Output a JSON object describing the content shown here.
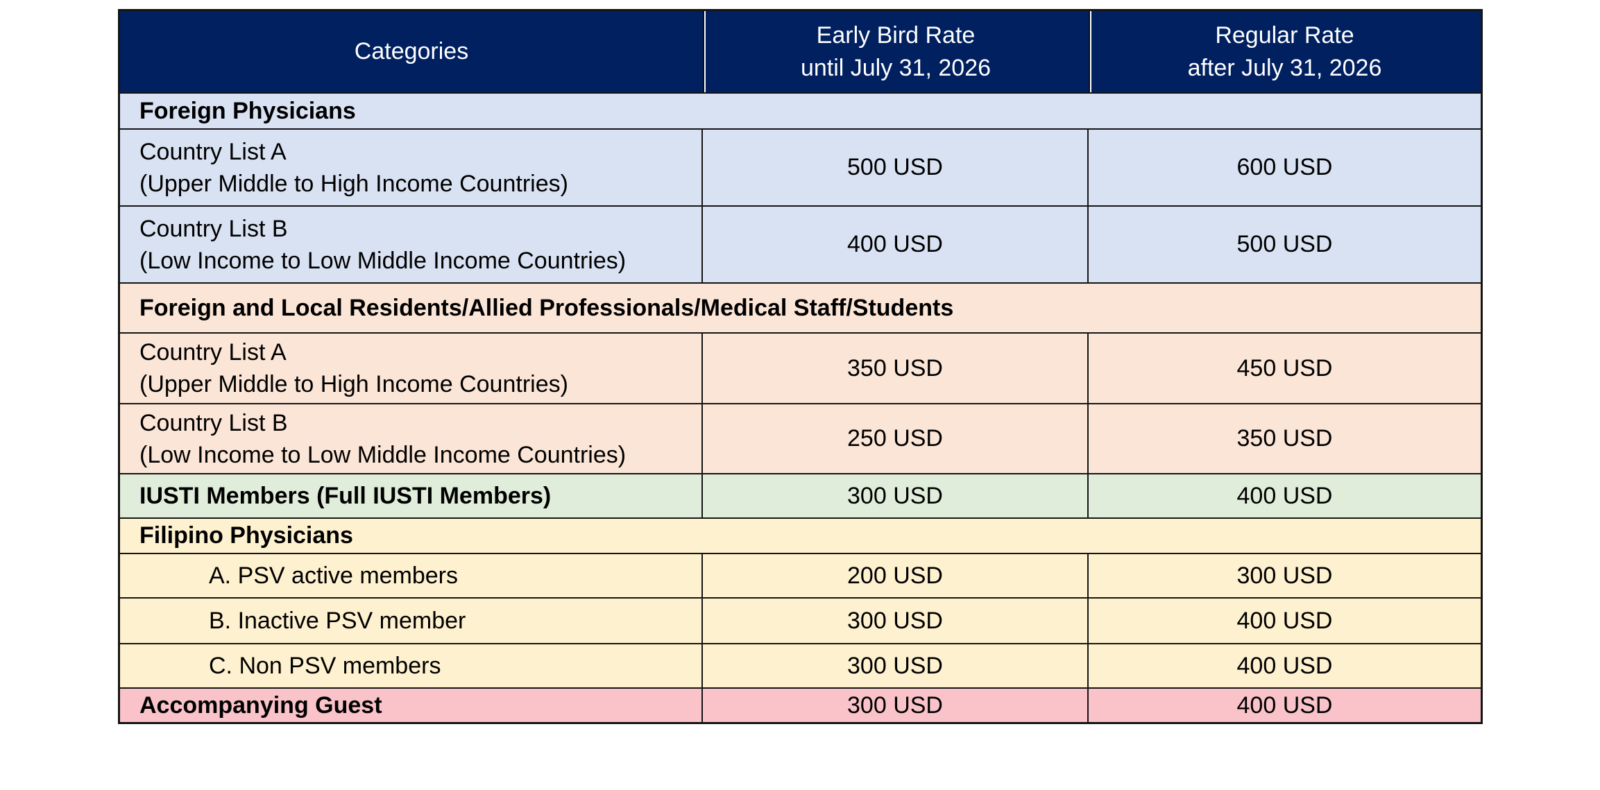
{
  "palette": {
    "page_bg": "#FFFFFF",
    "header_bg": "#002060",
    "header_text": "#FFFFFF",
    "header_divider": "#FFFFFF",
    "body_text": "#000000",
    "border": "#141414",
    "row_blue": "#D9E2F3",
    "row_peach": "#FBE5D6",
    "row_green": "#E0EDDA",
    "row_yellow": "#FEF1CF",
    "row_pink": "#F9C3C9"
  },
  "table": {
    "header": {
      "cells": [
        {
          "name": "categories",
          "lines": [
            "Categories"
          ]
        },
        {
          "name": "early-bird-rate",
          "lines": [
            "Early Bird Rate",
            "until July 31, 2026"
          ]
        },
        {
          "name": "regular-rate",
          "lines": [
            "Regular Rate",
            "after July 31, 2026"
          ]
        }
      ]
    },
    "rows": [
      {
        "kind": "section",
        "name": "foreign-physicians",
        "style": "blue",
        "label": "Foreign Physicians"
      },
      {
        "kind": "data",
        "name": "foreign-physicians-country-list-a",
        "style": "blue",
        "category": {
          "lines": [
            "Country List A",
            "(Upper Middle to High Income Countries)"
          ]
        },
        "early": "500 USD",
        "regular": "600 USD"
      },
      {
        "kind": "data",
        "name": "foreign-physicians-country-list-b",
        "style": "blue",
        "category": {
          "lines": [
            "Country List B",
            "(Low Income to Low Middle Income Countries)"
          ]
        },
        "early": "400 USD",
        "regular": "500 USD"
      },
      {
        "kind": "section",
        "name": "foreign-and-local-residents",
        "style": "peach",
        "label": "Foreign and Local Residents/Allied Professionals/Medical Staff/Students"
      },
      {
        "kind": "data",
        "name": "residents-country-list-a",
        "style": "peach",
        "category": {
          "lines": [
            "Country List A",
            "(Upper Middle to High Income Countries)"
          ]
        },
        "early": "350 USD",
        "regular": "450 USD"
      },
      {
        "kind": "data",
        "name": "residents-country-list-b",
        "style": "peach",
        "category": {
          "lines": [
            "Country List B",
            "(Low Income to Low Middle Income Countries)"
          ]
        },
        "early": "250 USD",
        "regular": "350 USD"
      },
      {
        "kind": "data",
        "name": "iusti-members",
        "style": "green",
        "category": {
          "lines": [
            "IUSTI Members (Full IUSTI Members)"
          ],
          "bold": true
        },
        "early": "300 USD",
        "regular": "400 USD"
      },
      {
        "kind": "section",
        "name": "filipino-physicians",
        "style": "yellow",
        "label": "Filipino Physicians"
      },
      {
        "kind": "data",
        "name": "psv-active-members",
        "style": "yellow",
        "category": {
          "lines": [
            "A. PSV active members"
          ],
          "indent": true
        },
        "early": "200 USD",
        "regular": "300 USD"
      },
      {
        "kind": "data",
        "name": "inactive-psv-member",
        "style": "yellow",
        "category": {
          "lines": [
            "B. Inactive PSV member"
          ],
          "indent": true
        },
        "early": "300 USD",
        "regular": "400 USD"
      },
      {
        "kind": "data",
        "name": "non-psv-members",
        "style": "yellow",
        "category": {
          "lines": [
            "C. Non PSV members"
          ],
          "indent": true
        },
        "early": "300 USD",
        "regular": "400 USD"
      },
      {
        "kind": "data",
        "name": "accompanying-guest",
        "style": "pink",
        "category": {
          "lines": [
            "Accompanying Guest"
          ],
          "bold": true
        },
        "early": "300 USD",
        "regular": "400 USD"
      }
    ]
  }
}
